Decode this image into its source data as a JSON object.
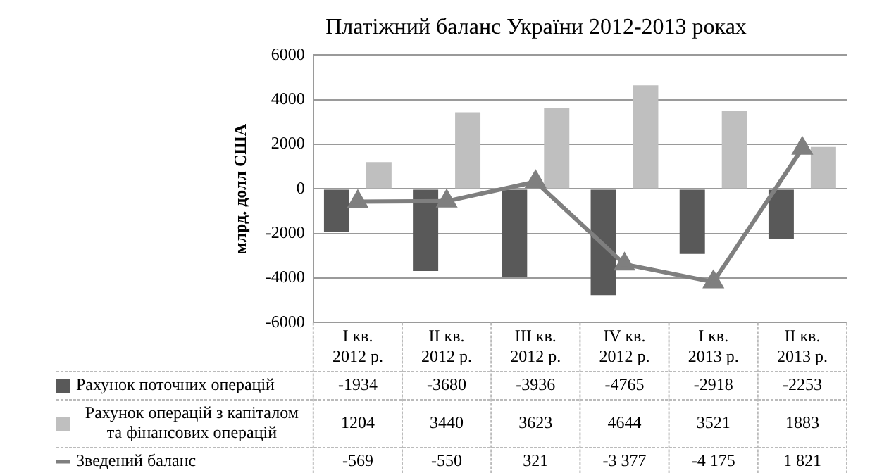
{
  "chart_data": {
    "type": "bar",
    "title": "Платіжний баланс України 2012-2013 роках",
    "ylabel": "млрд. долл США",
    "categories": [
      "I кв. 2012 р.",
      "II кв. 2012 р.",
      "III кв. 2012 р.",
      "IV кв. 2012 р.",
      "I кв. 2013 р.",
      "II кв. 2013 р."
    ],
    "series": [
      {
        "name": "Рахунок поточних операцій",
        "color": "#595959",
        "values": [
          -1934,
          -3680,
          -3936,
          -4765,
          -2918,
          -2253
        ],
        "value_labels": [
          "-1934",
          "-3680",
          "-3936",
          "-4765",
          "-2918",
          "-2253"
        ]
      },
      {
        "name": "Рахунок операцій з капіталом та фінансових операцій",
        "color": "#bfbfbf",
        "values": [
          1204,
          3440,
          3623,
          4644,
          3521,
          1883
        ],
        "value_labels": [
          "1204",
          "3440",
          "3623",
          "4644",
          "3521",
          "1883"
        ]
      },
      {
        "name": "Зведений баланс",
        "type": "line",
        "color": "#7f7f7f",
        "marker": "triangle",
        "values": [
          -569,
          -550,
          321,
          -3377,
          -4175,
          1821
        ],
        "value_labels": [
          "-569",
          "-550",
          "321",
          "-3 377",
          "-4 175",
          "1 821"
        ]
      }
    ],
    "ylim": [
      -6000,
      6000
    ],
    "yticks": [
      -6000,
      -4000,
      -2000,
      0,
      2000,
      4000,
      6000
    ],
    "grid": "y",
    "legend": "bottom left"
  }
}
